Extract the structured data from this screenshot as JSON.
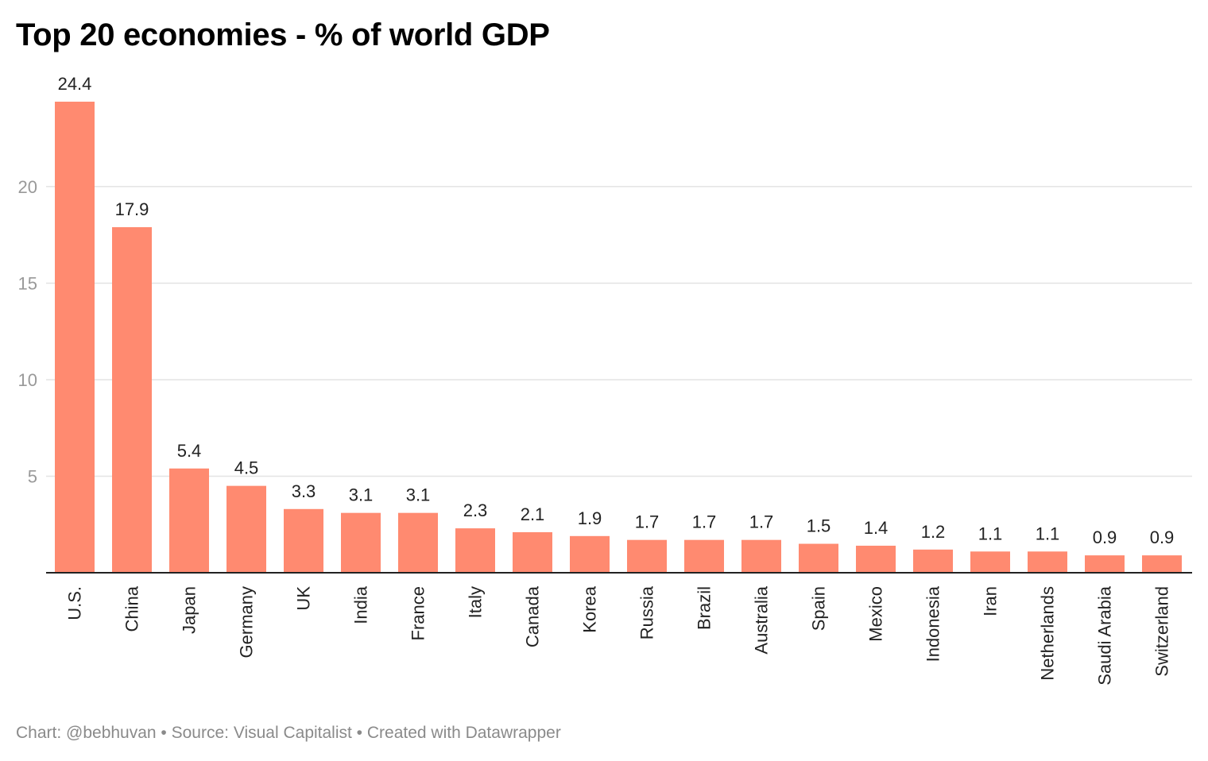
{
  "title": "Top 20 economies - % of world GDP",
  "footer": "Chart: @bebhuvan • Source: Visual Capitalist • Created with Datawrapper",
  "colors": {
    "bar": "#ff8a70",
    "grid": "#e3e3e3",
    "axis": "#222222",
    "tick_label": "#999999",
    "value_label": "#222222",
    "category_label": "#222222"
  },
  "chart_data": {
    "type": "bar",
    "title": "Top 20 economies - % of world GDP",
    "xlabel": "",
    "ylabel": "",
    "ylim": [
      0,
      24.4
    ],
    "yticks": [
      5,
      10,
      15,
      20
    ],
    "grid": true,
    "categories": [
      "U.S.",
      "China",
      "Japan",
      "Germany",
      "UK",
      "India",
      "France",
      "Italy",
      "Canada",
      "Korea",
      "Russia",
      "Brazil",
      "Australia",
      "Spain",
      "Mexico",
      "Indonesia",
      "Iran",
      "Netherlands",
      "Saudi Arabia",
      "Switzerland"
    ],
    "values": [
      24.4,
      17.9,
      5.4,
      4.5,
      3.3,
      3.1,
      3.1,
      2.3,
      2.1,
      1.9,
      1.7,
      1.7,
      1.7,
      1.5,
      1.4,
      1.2,
      1.1,
      1.1,
      0.9,
      0.9
    ],
    "value_labels": [
      "24.4",
      "17.9",
      "5.4",
      "4.5",
      "3.3",
      "3.1",
      "3.1",
      "2.3",
      "2.1",
      "1.9",
      "1.7",
      "1.7",
      "1.7",
      "1.5",
      "1.4",
      "1.2",
      "1.1",
      "1.1",
      "0.9",
      "0.9"
    ]
  }
}
